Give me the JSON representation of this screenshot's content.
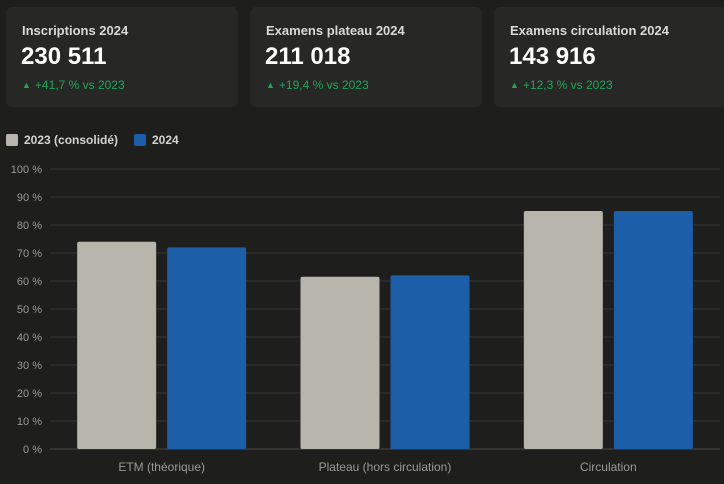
{
  "kpis": [
    {
      "title": "Inscriptions 2024",
      "value": "230 511",
      "delta": "+41,7 % vs 2023"
    },
    {
      "title": "Examens plateau 2024",
      "value": "211 018",
      "delta": "+19,4 % vs 2023"
    },
    {
      "title": "Examens circulation 2024",
      "value": "143 916",
      "delta": "+12,3 % vs 2023"
    }
  ],
  "colors": {
    "series_2023": "#b8b5ad",
    "series_2024": "#1c5ea8",
    "positive": "#22a45d"
  },
  "chart_data": {
    "type": "bar",
    "categories": [
      "ETM (théorique)",
      "Plateau (hors circulation)",
      "Circulation"
    ],
    "series": [
      {
        "name": "2023 (consolidé)",
        "values": [
          74,
          61.5,
          85
        ]
      },
      {
        "name": "2024",
        "values": [
          72,
          62,
          85
        ]
      }
    ],
    "ylim": [
      0,
      100
    ],
    "yticks": [
      "0 %",
      "10 %",
      "20 %",
      "30 %",
      "40 %",
      "50 %",
      "60 %",
      "70 %",
      "80 %",
      "90 %",
      "100 %"
    ],
    "grid": true,
    "legend": "top-left"
  }
}
